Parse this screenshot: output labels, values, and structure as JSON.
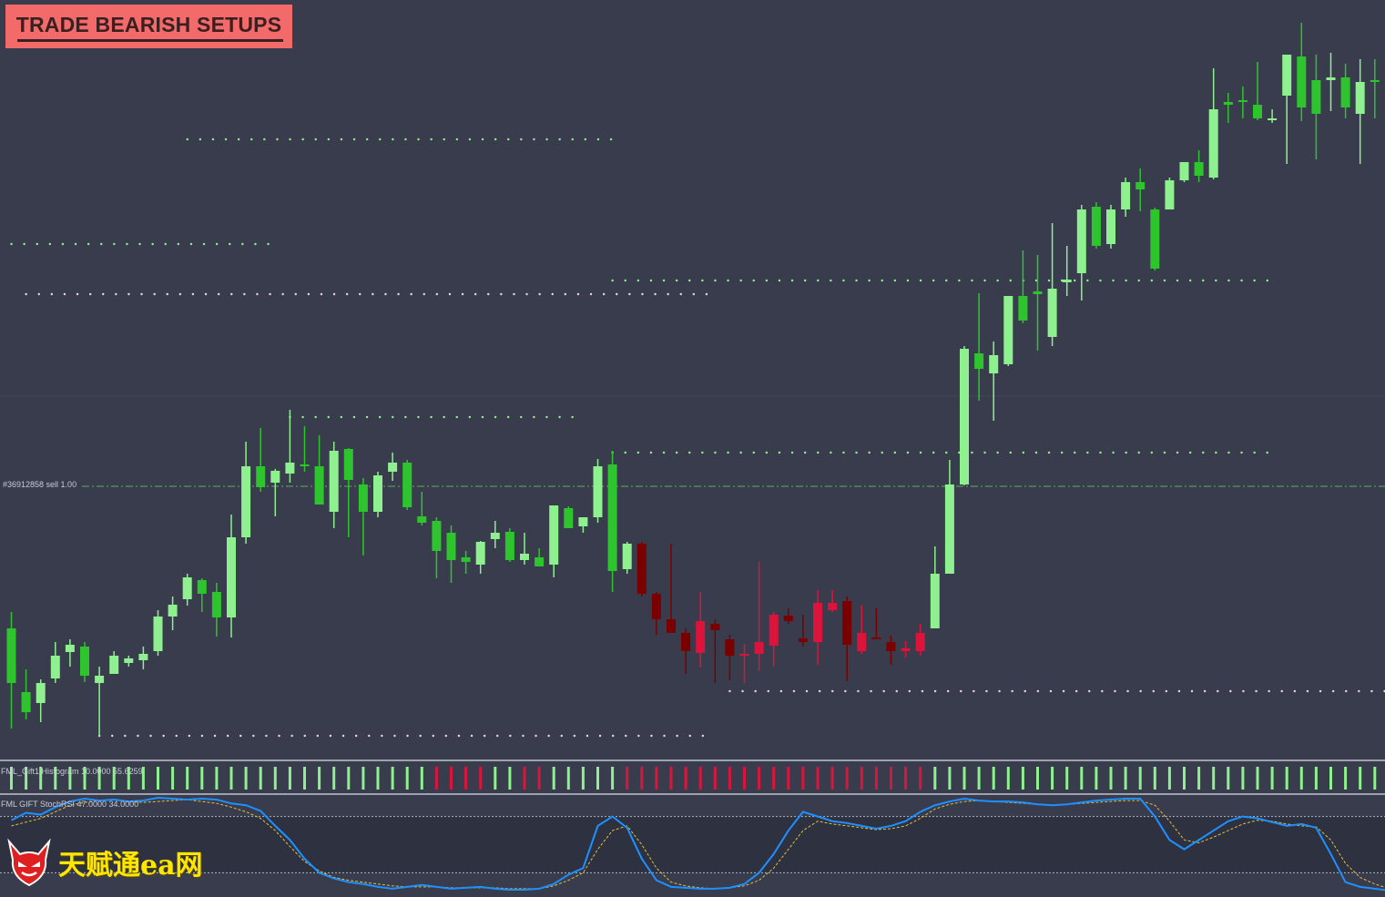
{
  "banner": {
    "text": "TRADE BEARISH SETUPS"
  },
  "order_line": {
    "label": "#36912858 sell 1.00",
    "color": "#5fae5f"
  },
  "histogram_panel": {
    "label": "FML_Gift1 Histogram 10.0000 55.6259"
  },
  "stoch_panel": {
    "label": "FML GIFT StochRSI 47.0000 34.0000"
  },
  "watermark": {
    "text": "天赋通ea网"
  },
  "colors": {
    "background": "#383c4c",
    "bull_light": "#8ef08e",
    "bull_dark": "#2ec42e",
    "bear_dark": "#7a0000",
    "bear_red": "#dc143c",
    "dots_green": "#8ef08e",
    "dots_pink": "#f0d0dc",
    "stoch_main": "#1e90ff",
    "stoch_signal": "#e0c040",
    "banner": "#f26a6a"
  },
  "chart_data": [
    {
      "type": "candlestick",
      "title": "",
      "ylim": [
        0,
        830
      ],
      "candles": [
        {
          "o": 140,
          "h": 158,
          "l": 30,
          "c": 80,
          "k": "G"
        },
        {
          "o": 70,
          "h": 95,
          "l": 40,
          "c": 48,
          "k": "G"
        },
        {
          "o": 58,
          "h": 84,
          "l": 37,
          "c": 80,
          "k": "L"
        },
        {
          "o": 85,
          "h": 125,
          "l": 80,
          "c": 110,
          "k": "L"
        },
        {
          "o": 114,
          "h": 128,
          "l": 98,
          "c": 122,
          "k": "L"
        },
        {
          "o": 120,
          "h": 125,
          "l": 81,
          "c": 88,
          "k": "G"
        },
        {
          "o": 80,
          "h": 98,
          "l": 22,
          "c": 88,
          "k": "L"
        },
        {
          "o": 90,
          "h": 115,
          "l": 90,
          "c": 110,
          "k": "L"
        },
        {
          "o": 102,
          "h": 110,
          "l": 98,
          "c": 107,
          "k": "L"
        },
        {
          "o": 105,
          "h": 120,
          "l": 95,
          "c": 112,
          "k": "L"
        },
        {
          "o": 115,
          "h": 160,
          "l": 110,
          "c": 153,
          "k": "L"
        },
        {
          "o": 153,
          "h": 175,
          "l": 138,
          "c": 166,
          "k": "L"
        },
        {
          "o": 172,
          "h": 200,
          "l": 165,
          "c": 196,
          "k": "L"
        },
        {
          "o": 178,
          "h": 195,
          "l": 158,
          "c": 193,
          "k": "G"
        },
        {
          "o": 180,
          "h": 190,
          "l": 131,
          "c": 152,
          "k": "G"
        },
        {
          "o": 152,
          "h": 265,
          "l": 130,
          "c": 240,
          "k": "L"
        },
        {
          "o": 240,
          "h": 345,
          "l": 233,
          "c": 318,
          "k": "L"
        },
        {
          "o": 318,
          "h": 360,
          "l": 290,
          "c": 295,
          "k": "G"
        },
        {
          "o": 300,
          "h": 315,
          "l": 263,
          "c": 313,
          "k": "L"
        },
        {
          "o": 310,
          "h": 380,
          "l": 300,
          "c": 322,
          "k": "L"
        },
        {
          "o": 318,
          "h": 362,
          "l": 312,
          "c": 320,
          "k": "G"
        },
        {
          "o": 318,
          "h": 352,
          "l": 280,
          "c": 276,
          "k": "G"
        },
        {
          "o": 268,
          "h": 345,
          "l": 250,
          "c": 335,
          "k": "L"
        },
        {
          "o": 337,
          "h": 338,
          "l": 240,
          "c": 303,
          "k": "G"
        },
        {
          "o": 298,
          "h": 305,
          "l": 220,
          "c": 268,
          "k": "G"
        },
        {
          "o": 268,
          "h": 312,
          "l": 262,
          "c": 308,
          "k": "L"
        },
        {
          "o": 312,
          "h": 333,
          "l": 302,
          "c": 322,
          "k": "L"
        },
        {
          "o": 322,
          "h": 325,
          "l": 270,
          "c": 273,
          "k": "G"
        },
        {
          "o": 263,
          "h": 290,
          "l": 253,
          "c": 256,
          "k": "G"
        },
        {
          "o": 258,
          "h": 262,
          "l": 195,
          "c": 225,
          "k": "G"
        },
        {
          "o": 245,
          "h": 253,
          "l": 190,
          "c": 215,
          "k": "G"
        },
        {
          "o": 218,
          "h": 225,
          "l": 200,
          "c": 213,
          "k": "G"
        },
        {
          "o": 210,
          "h": 236,
          "l": 200,
          "c": 235,
          "k": "L"
        },
        {
          "o": 238,
          "h": 258,
          "l": 228,
          "c": 245,
          "k": "L"
        },
        {
          "o": 246,
          "h": 250,
          "l": 213,
          "c": 215,
          "k": "G"
        },
        {
          "o": 215,
          "h": 245,
          "l": 210,
          "c": 222,
          "k": "L"
        },
        {
          "o": 218,
          "h": 228,
          "l": 208,
          "c": 208,
          "k": "G"
        },
        {
          "o": 210,
          "h": 275,
          "l": 196,
          "c": 275,
          "k": "L"
        },
        {
          "o": 272,
          "h": 274,
          "l": 250,
          "c": 250,
          "k": "G"
        },
        {
          "o": 252,
          "h": 262,
          "l": 245,
          "c": 262,
          "k": "L"
        },
        {
          "o": 262,
          "h": 326,
          "l": 256,
          "c": 318,
          "k": "L"
        },
        {
          "o": 320,
          "h": 335,
          "l": 180,
          "c": 203,
          "k": "G"
        },
        {
          "o": 205,
          "h": 235,
          "l": 200,
          "c": 233,
          "k": "L"
        },
        {
          "o": 233,
          "h": 235,
          "l": 175,
          "c": 178,
          "k": "B"
        },
        {
          "o": 178,
          "h": 180,
          "l": 133,
          "c": 150,
          "k": "B"
        },
        {
          "o": 150,
          "h": 233,
          "l": 135,
          "c": 135,
          "k": "B"
        },
        {
          "o": 135,
          "h": 140,
          "l": 90,
          "c": 115,
          "k": "B"
        },
        {
          "o": 113,
          "h": 180,
          "l": 97,
          "c": 148,
          "k": "R"
        },
        {
          "o": 145,
          "h": 150,
          "l": 80,
          "c": 138,
          "k": "B"
        },
        {
          "o": 128,
          "h": 133,
          "l": 83,
          "c": 110,
          "k": "B"
        },
        {
          "o": 112,
          "h": 123,
          "l": 80,
          "c": 110,
          "k": "R"
        },
        {
          "o": 112,
          "h": 213,
          "l": 93,
          "c": 125,
          "k": "R"
        },
        {
          "o": 121,
          "h": 158,
          "l": 98,
          "c": 155,
          "k": "R"
        },
        {
          "o": 154,
          "h": 162,
          "l": 145,
          "c": 148,
          "k": "B"
        },
        {
          "o": 129,
          "h": 155,
          "l": 120,
          "c": 125,
          "k": "B"
        },
        {
          "o": 125,
          "h": 182,
          "l": 100,
          "c": 168,
          "k": "R"
        },
        {
          "o": 168,
          "h": 182,
          "l": 158,
          "c": 160,
          "k": "R"
        },
        {
          "o": 170,
          "h": 175,
          "l": 82,
          "c": 122,
          "k": "B"
        },
        {
          "o": 135,
          "h": 165,
          "l": 112,
          "c": 115,
          "k": "R"
        },
        {
          "o": 130,
          "h": 162,
          "l": 130,
          "c": 130,
          "k": "B"
        },
        {
          "o": 125,
          "h": 132,
          "l": 100,
          "c": 115,
          "k": "B"
        },
        {
          "o": 118,
          "h": 126,
          "l": 108,
          "c": 115,
          "k": "R"
        },
        {
          "o": 115,
          "h": 145,
          "l": 110,
          "c": 135,
          "k": "R"
        },
        {
          "o": 140,
          "h": 230,
          "l": 140,
          "c": 200,
          "k": "L"
        },
        {
          "o": 200,
          "h": 325,
          "l": 200,
          "c": 298,
          "k": "L"
        },
        {
          "o": 298,
          "h": 450,
          "l": 297,
          "c": 447,
          "k": "L"
        },
        {
          "o": 442,
          "h": 508,
          "l": 390,
          "c": 425,
          "k": "G"
        },
        {
          "o": 420,
          "h": 455,
          "l": 368,
          "c": 440,
          "k": "L"
        },
        {
          "o": 430,
          "h": 505,
          "l": 428,
          "c": 505,
          "k": "L"
        },
        {
          "o": 505,
          "h": 555,
          "l": 475,
          "c": 478,
          "k": "G"
        },
        {
          "o": 510,
          "h": 550,
          "l": 445,
          "c": 507,
          "k": "G"
        },
        {
          "o": 460,
          "h": 585,
          "l": 450,
          "c": 513,
          "k": "L"
        },
        {
          "o": 520,
          "h": 560,
          "l": 505,
          "c": 523,
          "k": "L"
        },
        {
          "o": 530,
          "h": 605,
          "l": 500,
          "c": 600,
          "k": "L"
        },
        {
          "o": 603,
          "h": 608,
          "l": 557,
          "c": 560,
          "k": "G"
        },
        {
          "o": 562,
          "h": 605,
          "l": 557,
          "c": 600,
          "k": "L"
        },
        {
          "o": 600,
          "h": 635,
          "l": 592,
          "c": 630,
          "k": "L"
        },
        {
          "o": 630,
          "h": 645,
          "l": 598,
          "c": 622,
          "k": "G"
        },
        {
          "o": 535,
          "h": 602,
          "l": 533,
          "c": 600,
          "k": "G"
        },
        {
          "o": 600,
          "h": 635,
          "l": 600,
          "c": 632,
          "k": "L"
        },
        {
          "o": 632,
          "h": 652,
          "l": 630,
          "c": 652,
          "k": "L"
        },
        {
          "o": 652,
          "h": 665,
          "l": 630,
          "c": 637,
          "k": "G"
        },
        {
          "o": 635,
          "h": 755,
          "l": 633,
          "c": 710,
          "k": "L"
        },
        {
          "o": 715,
          "h": 728,
          "l": 695,
          "c": 718,
          "k": "G"
        },
        {
          "o": 720,
          "h": 735,
          "l": 700,
          "c": 720,
          "k": "G"
        },
        {
          "o": 715,
          "h": 762,
          "l": 698,
          "c": 700,
          "k": "G"
        },
        {
          "o": 698,
          "h": 710,
          "l": 695,
          "c": 700,
          "k": "L"
        },
        {
          "o": 725,
          "h": 770,
          "l": 650,
          "c": 770,
          "k": "L"
        },
        {
          "o": 768,
          "h": 805,
          "l": 697,
          "c": 712,
          "k": "G"
        },
        {
          "o": 705,
          "h": 770,
          "l": 655,
          "c": 742,
          "k": "G"
        },
        {
          "o": 742,
          "h": 772,
          "l": 708,
          "c": 745,
          "k": "L"
        },
        {
          "o": 745,
          "h": 760,
          "l": 700,
          "c": 712,
          "k": "G"
        },
        {
          "o": 705,
          "h": 765,
          "l": 650,
          "c": 740,
          "k": "L"
        },
        {
          "o": 740,
          "h": 765,
          "l": 700,
          "c": 742,
          "k": "G"
        }
      ],
      "levels": [
        {
          "y": 677,
          "x0": 12,
          "x1": 41,
          "style": "dots_green"
        },
        {
          "y": 562,
          "x0": 0,
          "x1": 18,
          "style": "dots_green"
        },
        {
          "y": 522,
          "x0": 41,
          "x1": 86,
          "style": "dots_green"
        },
        {
          "y": 507,
          "x0": 1,
          "x1": 48,
          "style": "dots_pink"
        },
        {
          "y": 372,
          "x0": 19,
          "x1": 39,
          "style": "dots_green"
        },
        {
          "y": 333,
          "x0": 41,
          "x1": 86,
          "style": "dots_green"
        },
        {
          "y": 71,
          "x0": 49,
          "x1": 94,
          "style": "dots_pink"
        },
        {
          "y": 22,
          "x0": 6,
          "x1": 48,
          "style": "dots_pink"
        }
      ],
      "order_line_value": 296
    },
    {
      "type": "histogram",
      "title": "",
      "bars": [
        "L",
        "L",
        "L",
        "L",
        "L",
        "L",
        "L",
        "L",
        "L",
        "L",
        "L",
        "L",
        "L",
        "L",
        "L",
        "L",
        "L",
        "L",
        "L",
        "L",
        "L",
        "L",
        "L",
        "L",
        "L",
        "L",
        "L",
        "L",
        "L",
        "R",
        "R",
        "R",
        "R",
        "L",
        "L",
        "R",
        "R",
        "L",
        "L",
        "L",
        "L",
        "L",
        "R",
        "R",
        "R",
        "R",
        "R",
        "R",
        "R",
        "R",
        "R",
        "R",
        "R",
        "R",
        "R",
        "R",
        "R",
        "R",
        "R",
        "R",
        "R",
        "R",
        "R",
        "L",
        "L",
        "L",
        "L",
        "L",
        "L",
        "L",
        "L",
        "L",
        "L",
        "L",
        "L",
        "L",
        "L",
        "L",
        "L",
        "L",
        "L",
        "L",
        "L",
        "L",
        "L",
        "L",
        "L",
        "L",
        "L",
        "L",
        "L",
        "L",
        "L",
        "L"
      ]
    },
    {
      "type": "line",
      "title": "",
      "ylim": [
        0,
        100
      ],
      "levels": [
        80,
        20
      ],
      "series": [
        {
          "values": [
            76,
            84,
            82,
            90,
            96,
            99,
            97,
            98,
            96,
            97,
            100,
            99,
            98,
            99,
            98,
            94,
            92,
            86,
            70,
            55,
            35,
            20,
            14,
            10,
            8,
            5,
            3,
            5,
            7,
            5,
            3,
            4,
            5,
            3,
            2,
            2,
            3,
            8,
            18,
            25,
            70,
            80,
            68,
            35,
            12,
            5,
            4,
            3,
            3,
            4,
            8,
            20,
            40,
            65,
            85,
            80,
            75,
            73,
            70,
            67,
            70,
            75,
            85,
            92,
            96,
            99,
            97,
            96,
            96,
            95,
            93,
            92,
            93,
            95,
            97,
            98,
            99,
            99,
            80,
            55,
            45,
            55,
            65,
            75,
            80,
            78,
            74,
            70,
            72,
            68,
            40,
            10,
            5,
            3,
            1
          ]
        },
        {
          "values": [
            70,
            74,
            78,
            85,
            92,
            95,
            97,
            98,
            96,
            95,
            96,
            97,
            98,
            96,
            94,
            90,
            85,
            78,
            65,
            48,
            32,
            22,
            15,
            12,
            10,
            8,
            6,
            5,
            5,
            5,
            4,
            4,
            4,
            4,
            3,
            3,
            3,
            6,
            12,
            20,
            45,
            65,
            70,
            50,
            25,
            10,
            6,
            4,
            3,
            4,
            6,
            12,
            25,
            45,
            65,
            75,
            72,
            70,
            68,
            66,
            67,
            70,
            78,
            88,
            93,
            96,
            97,
            96,
            95,
            94,
            93,
            92,
            93,
            94,
            95,
            96,
            97,
            97,
            92,
            75,
            55,
            52,
            58,
            65,
            72,
            76,
            75,
            72,
            70,
            69,
            55,
            30,
            15,
            8,
            3
          ]
        }
      ]
    }
  ]
}
